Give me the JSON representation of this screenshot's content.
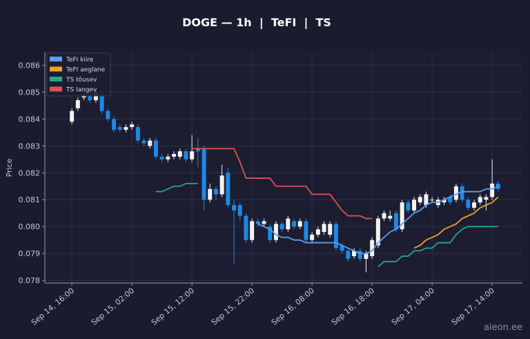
{
  "chart_data": {
    "type": "candlestick",
    "title": "DOGE — 1h  |  TeFI  |  TS",
    "y_label": "Price",
    "watermark": "aieon.ee",
    "up_color": "#f2f2f2",
    "down_color": "#1e88e5",
    "grid": true,
    "legend": "upper left",
    "ylim": [
      0.0779,
      0.0865
    ],
    "yticks": [
      0.078,
      0.079,
      {
        "value": 0.08,
        "label": "0.080"
      },
      0.081,
      0.082,
      0.083,
      0.084,
      0.085,
      0.086
    ],
    "xticks": [
      "Sep 14, 16:00",
      "Sep 15, 02:00",
      "Sep 15, 12:00",
      "Sep 15, 22:00",
      "Sep 16, 08:00",
      "Sep 16, 18:00",
      "Sep 17, 04:00",
      "Sep 17, 14:00"
    ],
    "x": [
      "Sep 14, 16:00",
      "Sep 14, 17:00",
      "Sep 14, 18:00",
      "Sep 14, 19:00",
      "Sep 14, 20:00",
      "Sep 14, 21:00",
      "Sep 14, 22:00",
      "Sep 14, 23:00",
      "Sep 15, 00:00",
      "Sep 15, 01:00",
      "Sep 15, 02:00",
      "Sep 15, 03:00",
      "Sep 15, 04:00",
      "Sep 15, 05:00",
      "Sep 15, 06:00",
      "Sep 15, 07:00",
      "Sep 15, 08:00",
      "Sep 15, 09:00",
      "Sep 15, 10:00",
      "Sep 15, 11:00",
      "Sep 15, 12:00",
      "Sep 15, 13:00",
      "Sep 15, 14:00",
      "Sep 15, 15:00",
      "Sep 15, 16:00",
      "Sep 15, 17:00",
      "Sep 15, 18:00",
      "Sep 15, 19:00",
      "Sep 15, 20:00",
      "Sep 15, 21:00",
      "Sep 15, 22:00",
      "Sep 15, 23:00",
      "Sep 16, 00:00",
      "Sep 16, 01:00",
      "Sep 16, 02:00",
      "Sep 16, 03:00",
      "Sep 16, 04:00",
      "Sep 16, 05:00",
      "Sep 16, 06:00",
      "Sep 16, 07:00",
      "Sep 16, 08:00",
      "Sep 16, 09:00",
      "Sep 16, 10:00",
      "Sep 16, 11:00",
      "Sep 16, 12:00",
      "Sep 16, 13:00",
      "Sep 16, 14:00",
      "Sep 16, 15:00",
      "Sep 16, 16:00",
      "Sep 16, 17:00",
      "Sep 16, 18:00",
      "Sep 16, 19:00",
      "Sep 16, 20:00",
      "Sep 16, 21:00",
      "Sep 16, 22:00",
      "Sep 16, 23:00",
      "Sep 17, 00:00",
      "Sep 17, 01:00",
      "Sep 17, 02:00",
      "Sep 17, 03:00",
      "Sep 17, 04:00",
      "Sep 17, 05:00",
      "Sep 17, 06:00",
      "Sep 17, 07:00",
      "Sep 17, 08:00",
      "Sep 17, 09:00",
      "Sep 17, 10:00",
      "Sep 17, 11:00",
      "Sep 17, 12:00",
      "Sep 17, 13:00",
      "Sep 17, 14:00",
      "Sep 17, 15:00"
    ],
    "open": [
      0.0839,
      0.0844,
      0.0848,
      0.085,
      0.0847,
      0.085,
      0.0843,
      0.084,
      0.0837,
      0.0836,
      0.0837,
      0.0837,
      0.0832,
      0.083,
      0.0832,
      0.0826,
      0.0825,
      0.0826,
      0.0826,
      0.0828,
      0.0825,
      0.0829,
      0.0829,
      0.081,
      0.0814,
      0.0812,
      0.082,
      0.0808,
      0.0808,
      0.0804,
      0.0795,
      0.0802,
      0.0801,
      0.08,
      0.0795,
      0.0801,
      0.0799,
      0.0802,
      0.08,
      0.0802,
      0.0795,
      0.0797,
      0.0798,
      0.0797,
      0.0801,
      0.0793,
      0.0791,
      0.0789,
      0.0791,
      0.0788,
      0.0789,
      0.0793,
      0.0803,
      0.0803,
      0.0805,
      0.0799,
      0.0809,
      0.0806,
      0.0809,
      0.0808,
      0.081,
      0.0808,
      0.0809,
      0.0811,
      0.081,
      0.0815,
      0.081,
      0.0807,
      0.0809,
      0.081,
      0.0811,
      0.0816
    ],
    "high": [
      0.0844,
      0.0848,
      0.085,
      0.0851,
      0.0851,
      0.0851,
      0.0844,
      0.0841,
      0.0838,
      0.0838,
      0.0839,
      0.0838,
      0.0833,
      0.0833,
      0.0833,
      0.0827,
      0.0827,
      0.0828,
      0.0829,
      0.0829,
      0.0834,
      0.0833,
      0.083,
      0.0816,
      0.0815,
      0.0823,
      0.0822,
      0.081,
      0.0809,
      0.0805,
      0.0803,
      0.0803,
      0.0803,
      0.0801,
      0.0802,
      0.0802,
      0.0804,
      0.0803,
      0.0803,
      0.0803,
      0.0798,
      0.08,
      0.0802,
      0.0802,
      0.0802,
      0.0794,
      0.0792,
      0.0792,
      0.0792,
      0.0791,
      0.0796,
      0.0804,
      0.0806,
      0.0806,
      0.0806,
      0.081,
      0.081,
      0.0811,
      0.0812,
      0.0813,
      0.0811,
      0.0811,
      0.0811,
      0.0812,
      0.0816,
      0.0816,
      0.0811,
      0.081,
      0.0812,
      0.0812,
      0.0825,
      0.0817
    ],
    "low": [
      0.0838,
      0.0843,
      0.0847,
      0.0846,
      0.0846,
      0.0842,
      0.0839,
      0.0835,
      0.0835,
      0.0835,
      0.0836,
      0.0831,
      0.083,
      0.0829,
      0.0825,
      0.0824,
      0.0824,
      0.0825,
      0.0825,
      0.0824,
      0.0824,
      0.0822,
      0.0806,
      0.0809,
      0.081,
      0.0811,
      0.0807,
      0.0786,
      0.0802,
      0.0794,
      0.0794,
      0.08,
      0.08,
      0.0794,
      0.0794,
      0.0798,
      0.0798,
      0.0799,
      0.0799,
      0.0794,
      0.0794,
      0.0796,
      0.0797,
      0.0796,
      0.0791,
      0.079,
      0.0787,
      0.0788,
      0.0787,
      0.0783,
      0.0788,
      0.0792,
      0.0802,
      0.0802,
      0.0798,
      0.0798,
      0.0805,
      0.0805,
      0.0808,
      0.0807,
      0.0809,
      0.0807,
      0.0808,
      0.0808,
      0.0809,
      0.0809,
      0.0806,
      0.0806,
      0.0808,
      0.0806,
      0.081,
      0.0813
    ],
    "close": [
      0.0843,
      0.0847,
      0.0849,
      0.0847,
      0.085,
      0.0843,
      0.084,
      0.0836,
      0.0836,
      0.0837,
      0.0838,
      0.0832,
      0.0831,
      0.0832,
      0.0826,
      0.0825,
      0.0826,
      0.0827,
      0.0828,
      0.0825,
      0.0828,
      0.0828,
      0.081,
      0.0814,
      0.0812,
      0.0819,
      0.0808,
      0.0806,
      0.0804,
      0.0795,
      0.0802,
      0.0801,
      0.0802,
      0.0795,
      0.0801,
      0.0799,
      0.0803,
      0.08,
      0.0802,
      0.0795,
      0.0797,
      0.0799,
      0.0801,
      0.0801,
      0.0792,
      0.0791,
      0.0788,
      0.0791,
      0.0788,
      0.079,
      0.0795,
      0.0803,
      0.0805,
      0.0804,
      0.0799,
      0.0809,
      0.0806,
      0.081,
      0.0811,
      0.0812,
      0.081,
      0.081,
      0.081,
      0.0809,
      0.0815,
      0.081,
      0.0807,
      0.0809,
      0.0811,
      0.0811,
      0.0816,
      0.0814
    ],
    "lines": [
      {
        "name": "TeFI kiire",
        "color": "#5b9ff0",
        "values": [
          null,
          null,
          null,
          null,
          null,
          null,
          null,
          null,
          null,
          null,
          null,
          null,
          null,
          null,
          null,
          null,
          null,
          null,
          null,
          null,
          null,
          null,
          null,
          null,
          null,
          null,
          null,
          null,
          null,
          null,
          null,
          0.0801,
          0.08,
          0.0799,
          0.0797,
          0.0796,
          0.0796,
          0.0795,
          0.0795,
          0.0794,
          0.0794,
          0.0794,
          0.0794,
          0.0794,
          0.0794,
          0.0793,
          0.0792,
          0.0791,
          0.079,
          0.079,
          0.0791,
          0.0794,
          0.0796,
          0.0798,
          0.0799,
          0.0801,
          0.0803,
          0.0805,
          0.0806,
          0.0808,
          0.0809,
          0.0809,
          0.081,
          0.0811,
          0.0812,
          0.0813,
          0.0813,
          0.0813,
          0.0813,
          0.0814,
          0.0814,
          0.0815
        ]
      },
      {
        "name": "TeFI aeglane",
        "color": "#f0a324",
        "values": [
          null,
          null,
          null,
          null,
          null,
          null,
          null,
          null,
          null,
          null,
          null,
          null,
          null,
          null,
          null,
          null,
          null,
          null,
          null,
          null,
          null,
          null,
          null,
          null,
          null,
          null,
          null,
          null,
          null,
          null,
          null,
          null,
          null,
          null,
          null,
          null,
          null,
          null,
          null,
          null,
          null,
          null,
          null,
          null,
          null,
          null,
          null,
          null,
          null,
          null,
          null,
          null,
          null,
          null,
          null,
          null,
          null,
          0.0792,
          0.0793,
          0.0795,
          0.0796,
          0.0797,
          0.0799,
          0.08,
          0.0801,
          0.0803,
          0.0804,
          0.0805,
          0.0807,
          0.0808,
          0.0809,
          0.0811
        ]
      },
      {
        "name": "TS tõusev",
        "color": "#26a68f",
        "values": [
          null,
          null,
          null,
          null,
          null,
          null,
          null,
          null,
          null,
          null,
          null,
          null,
          null,
          null,
          0.0813,
          0.0813,
          0.0814,
          0.0815,
          0.0815,
          0.0816,
          0.0816,
          0.0816,
          null,
          null,
          null,
          null,
          null,
          null,
          null,
          null,
          null,
          null,
          null,
          null,
          null,
          null,
          null,
          null,
          null,
          null,
          null,
          null,
          null,
          null,
          null,
          null,
          null,
          null,
          null,
          null,
          null,
          0.0785,
          0.0787,
          0.0787,
          0.0787,
          0.0789,
          0.0789,
          0.0791,
          0.0791,
          0.0792,
          0.0792,
          0.0794,
          0.0794,
          0.0794,
          0.0797,
          0.0799,
          0.08,
          0.08,
          0.08,
          0.08,
          0.08,
          0.08
        ]
      },
      {
        "name": "TS langev",
        "color": "#e05252",
        "values": [
          null,
          null,
          null,
          null,
          null,
          null,
          null,
          null,
          null,
          null,
          null,
          null,
          null,
          null,
          null,
          null,
          null,
          null,
          null,
          null,
          0.0829,
          0.0829,
          0.0829,
          0.0829,
          0.0829,
          0.0829,
          0.0829,
          0.0829,
          0.0824,
          0.0818,
          0.0818,
          0.0818,
          0.0818,
          0.0818,
          0.0815,
          0.0815,
          0.0815,
          0.0815,
          0.0815,
          0.0815,
          0.0812,
          0.0812,
          0.0812,
          0.0812,
          0.0809,
          0.0806,
          0.0804,
          0.0804,
          0.0804,
          0.0803,
          0.0803,
          null,
          null,
          null,
          null,
          null,
          null,
          null,
          null,
          null,
          null,
          null,
          null,
          null,
          null,
          null,
          null,
          null,
          null,
          null,
          null,
          null
        ]
      }
    ]
  }
}
